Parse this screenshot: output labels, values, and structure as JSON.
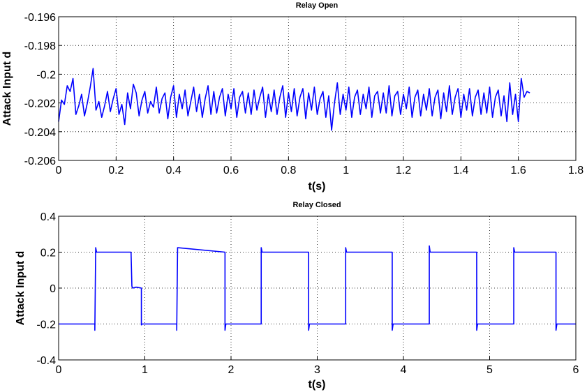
{
  "chart_data": [
    {
      "type": "line",
      "title": "Relay Open",
      "xlabel": "t(s)",
      "ylabel": "Attack Input d",
      "xlim": [
        0,
        1.8
      ],
      "ylim": [
        -0.206,
        -0.196
      ],
      "xticks": [
        "0",
        "0.2",
        "0.4",
        "0.6",
        "0.8",
        "1",
        "1.2",
        "1.4",
        "1.6",
        "1.8"
      ],
      "yticks": [
        "-0.196",
        "-0.198",
        "-0.2",
        "-0.202",
        "-0.204",
        "-0.206"
      ],
      "grid": true,
      "series": [
        {
          "color": "#0000ff",
          "x": [
            0,
            0.01,
            0.02,
            0.03,
            0.04,
            0.05,
            0.06,
            0.07,
            0.08,
            0.09,
            0.1,
            0.11,
            0.12,
            0.13,
            0.14,
            0.15,
            0.16,
            0.17,
            0.18,
            0.19,
            0.2,
            0.21,
            0.22,
            0.23,
            0.24,
            0.25,
            0.26,
            0.27,
            0.28,
            0.29,
            0.3,
            0.31,
            0.32,
            0.33,
            0.34,
            0.35,
            0.36,
            0.37,
            0.38,
            0.39,
            0.4,
            0.41,
            0.42,
            0.43,
            0.44,
            0.45,
            0.46,
            0.47,
            0.48,
            0.49,
            0.5,
            0.51,
            0.52,
            0.53,
            0.54,
            0.55,
            0.56,
            0.57,
            0.58,
            0.59,
            0.6,
            0.61,
            0.62,
            0.63,
            0.64,
            0.65,
            0.66,
            0.67,
            0.68,
            0.69,
            0.7,
            0.71,
            0.72,
            0.73,
            0.74,
            0.75,
            0.76,
            0.77,
            0.78,
            0.79,
            0.8,
            0.81,
            0.82,
            0.83,
            0.84,
            0.85,
            0.86,
            0.87,
            0.88,
            0.89,
            0.9,
            0.91,
            0.92,
            0.93,
            0.94,
            0.95,
            0.96,
            0.97,
            0.98,
            0.99,
            1.0,
            1.01,
            1.02,
            1.03,
            1.04,
            1.05,
            1.06,
            1.07,
            1.08,
            1.09,
            1.1,
            1.11,
            1.12,
            1.13,
            1.14,
            1.15,
            1.16,
            1.17,
            1.18,
            1.19,
            1.2,
            1.21,
            1.22,
            1.23,
            1.24,
            1.25,
            1.26,
            1.27,
            1.28,
            1.29,
            1.3,
            1.31,
            1.32,
            1.33,
            1.34,
            1.35,
            1.36,
            1.37,
            1.38,
            1.39,
            1.4,
            1.41,
            1.42,
            1.43,
            1.44,
            1.45,
            1.46,
            1.47,
            1.48,
            1.49,
            1.5,
            1.51,
            1.52,
            1.53,
            1.54,
            1.55,
            1.56,
            1.57,
            1.58,
            1.59,
            1.6,
            1.61,
            1.62,
            1.63,
            1.64
          ],
          "y": [
            -0.2033,
            -0.2018,
            -0.2021,
            -0.2008,
            -0.2012,
            -0.2003,
            -0.2028,
            -0.2022,
            -0.2014,
            -0.2029,
            -0.202,
            -0.2009,
            -0.1996,
            -0.2025,
            -0.2019,
            -0.203,
            -0.2022,
            -0.2012,
            -0.2026,
            -0.2017,
            -0.201,
            -0.2028,
            -0.2021,
            -0.2035,
            -0.2013,
            -0.2024,
            -0.2007,
            -0.2013,
            -0.2029,
            -0.2018,
            -0.2012,
            -0.2027,
            -0.2019,
            -0.2023,
            -0.2009,
            -0.2027,
            -0.2017,
            -0.2013,
            -0.2031,
            -0.2016,
            -0.2008,
            -0.203,
            -0.2014,
            -0.2024,
            -0.2011,
            -0.2029,
            -0.2019,
            -0.2009,
            -0.2026,
            -0.2014,
            -0.203,
            -0.2017,
            -0.2008,
            -0.2028,
            -0.2012,
            -0.2027,
            -0.2016,
            -0.201,
            -0.2029,
            -0.2014,
            -0.2024,
            -0.201,
            -0.203,
            -0.2016,
            -0.2012,
            -0.2027,
            -0.2013,
            -0.2028,
            -0.2011,
            -0.2025,
            -0.2016,
            -0.2009,
            -0.203,
            -0.2014,
            -0.2026,
            -0.2011,
            -0.2028,
            -0.2016,
            -0.2008,
            -0.203,
            -0.2013,
            -0.2026,
            -0.201,
            -0.2029,
            -0.2016,
            -0.201,
            -0.2031,
            -0.2013,
            -0.2025,
            -0.2009,
            -0.2028,
            -0.2017,
            -0.2012,
            -0.203,
            -0.2015,
            -0.2039,
            -0.202,
            -0.2006,
            -0.2028,
            -0.2014,
            -0.2025,
            -0.2009,
            -0.203,
            -0.2016,
            -0.2011,
            -0.2028,
            -0.2014,
            -0.2024,
            -0.2009,
            -0.203,
            -0.2015,
            -0.2012,
            -0.2027,
            -0.2013,
            -0.2027,
            -0.2008,
            -0.2029,
            -0.2015,
            -0.2012,
            -0.2028,
            -0.2014,
            -0.2024,
            -0.2009,
            -0.203,
            -0.2016,
            -0.2011,
            -0.2029,
            -0.2014,
            -0.2025,
            -0.201,
            -0.2029,
            -0.2016,
            -0.2011,
            -0.2031,
            -0.2013,
            -0.2026,
            -0.2008,
            -0.2028,
            -0.2016,
            -0.201,
            -0.203,
            -0.2014,
            -0.2025,
            -0.201,
            -0.2029,
            -0.2016,
            -0.2011,
            -0.2028,
            -0.2013,
            -0.2027,
            -0.2009,
            -0.203,
            -0.2016,
            -0.2011,
            -0.2029,
            -0.2015,
            -0.2033,
            -0.2006,
            -0.2028,
            -0.2014,
            -0.2033,
            -0.2003,
            -0.2016,
            -0.2012,
            -0.2013
          ]
        }
      ]
    },
    {
      "type": "line",
      "title": "Relay Closed",
      "xlabel": "t(s)",
      "ylabel": "Attack Input d",
      "xlim": [
        0,
        6
      ],
      "ylim": [
        -0.4,
        0.4
      ],
      "xticks": [
        "0",
        "1",
        "2",
        "3",
        "4",
        "5",
        "6"
      ],
      "yticks": [
        "0.4",
        "0.2",
        "0",
        "-0.2",
        "-0.4"
      ],
      "grid": true,
      "series": [
        {
          "color": "#0000ff",
          "x": [
            0,
            0.42,
            0.42,
            0.43,
            0.44,
            0.84,
            0.85,
            0.86,
            0.9,
            0.96,
            0.96,
            0.97,
            1.37,
            1.37,
            1.38,
            1.93,
            1.93,
            1.94,
            2.35,
            2.35,
            2.36,
            2.9,
            2.9,
            2.91,
            3.33,
            3.33,
            3.34,
            3.87,
            3.87,
            3.88,
            4.3,
            4.3,
            4.31,
            4.85,
            4.85,
            4.86,
            5.28,
            5.28,
            5.29,
            5.77,
            5.77,
            5.78,
            6.0
          ],
          "y": [
            -0.2,
            -0.2,
            -0.235,
            0.225,
            0.2,
            0.2,
            0.01,
            0.0,
            0.005,
            0.0,
            -0.205,
            -0.2,
            -0.2,
            -0.235,
            0.225,
            0.2,
            -0.235,
            -0.2,
            -0.2,
            0.225,
            0.2,
            0.2,
            -0.235,
            -0.2,
            -0.2,
            0.225,
            0.2,
            0.2,
            -0.235,
            -0.2,
            -0.2,
            0.235,
            0.2,
            0.2,
            -0.235,
            -0.2,
            -0.2,
            0.225,
            0.2,
            0.2,
            -0.235,
            -0.2,
            -0.2
          ]
        }
      ]
    }
  ]
}
